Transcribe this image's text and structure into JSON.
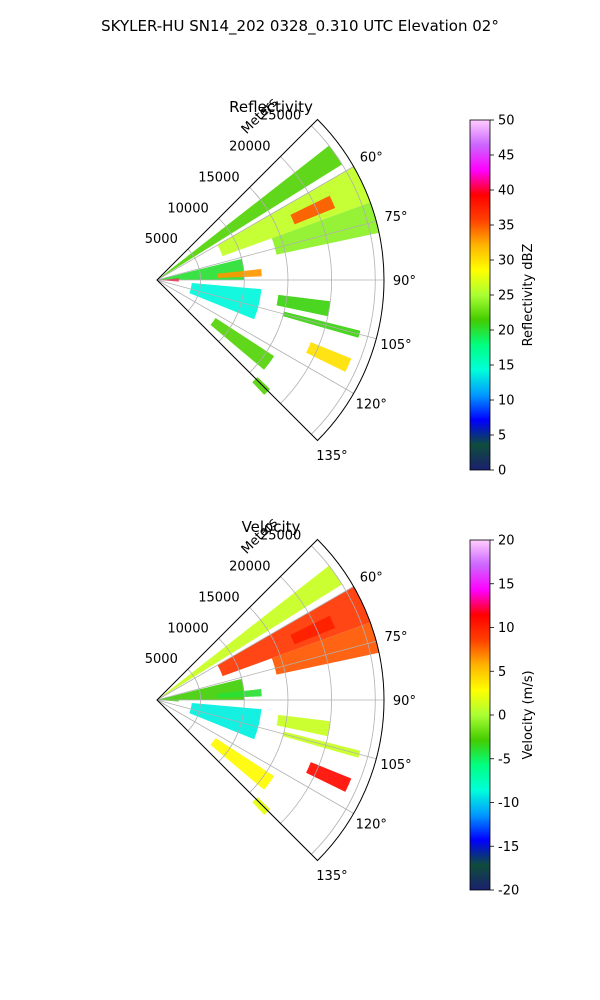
{
  "figure": {
    "suptitle": "SKYLER-HU  SN14_202  0328_0.310 UTC Elevation 02°"
  },
  "chart_data": [
    {
      "type": "polar-sector",
      "title": "Reflectivity",
      "r_label": "Meters",
      "r_ticks": [
        5000,
        10000,
        15000,
        20000,
        25000
      ],
      "r_max": 26000,
      "theta_ticks_deg": [
        60,
        75,
        90,
        105,
        120,
        135
      ],
      "theta_range_deg": [
        45,
        135
      ],
      "grid": true,
      "colorbar": {
        "label": "Reflectivity dBZ",
        "min": 0,
        "max": 50,
        "ticks": [
          0,
          5,
          10,
          15,
          20,
          25,
          30,
          35,
          40,
          45,
          50
        ],
        "stops": [
          "#1a1f6e",
          "#0f4d3c",
          "#0000ff",
          "#0099ff",
          "#00ffd9",
          "#00ff80",
          "#44cc00",
          "#aaff33",
          "#ffff00",
          "#ffb300",
          "#ff4000",
          "#ff0000",
          "#ff00ff",
          "#cc66ff",
          "#ffccff"
        ]
      },
      "echoes": [
        {
          "az": [
            52,
            58
          ],
          "r": [
            0,
            25000
          ],
          "value": 22
        },
        {
          "az": [
            60,
            70
          ],
          "r": [
            8000,
            26000
          ],
          "value": 26
        },
        {
          "az": [
            64,
            68
          ],
          "r": [
            17000,
            22000
          ],
          "value": 35
        },
        {
          "az": [
            70,
            78
          ],
          "r": [
            14000,
            26000
          ],
          "value": 24
        },
        {
          "az": [
            76,
            90
          ],
          "r": [
            0,
            10000
          ],
          "value": 20
        },
        {
          "az": [
            84,
            88
          ],
          "r": [
            7000,
            12000
          ],
          "value": 33
        },
        {
          "az": [
            86,
            94
          ],
          "r": [
            0,
            2500
          ],
          "value": 40
        },
        {
          "az": [
            95,
            112
          ],
          "r": [
            4000,
            12000
          ],
          "value": 14
        },
        {
          "az": [
            97,
            102
          ],
          "r": [
            14000,
            20000
          ],
          "value": 21
        },
        {
          "az": [
            104,
            106
          ],
          "r": [
            15000,
            24000
          ],
          "value": 21
        },
        {
          "az": [
            112,
            116
          ],
          "r": [
            19000,
            24000
          ],
          "value": 30
        },
        {
          "az": [
            123,
            130
          ],
          "r": [
            8000,
            16000
          ],
          "value": 22
        },
        {
          "az": [
            134,
            137
          ],
          "r": [
            16000,
            18000
          ],
          "value": 22
        }
      ]
    },
    {
      "type": "polar-sector",
      "title": "Velocity",
      "r_label": "Meters",
      "r_ticks": [
        5000,
        10000,
        15000,
        20000,
        25000
      ],
      "r_max": 26000,
      "theta_ticks_deg": [
        60,
        75,
        90,
        105,
        120,
        135
      ],
      "theta_range_deg": [
        45,
        135
      ],
      "grid": true,
      "colorbar": {
        "label": "Velocity (m/s)",
        "min": -20,
        "max": 20,
        "ticks": [
          -20,
          -15,
          -10,
          -5,
          0,
          5,
          10,
          15,
          20
        ],
        "stops": [
          "#1a1f6e",
          "#0f4d3c",
          "#0000ff",
          "#0099ff",
          "#00ffd9",
          "#00ff80",
          "#44cc00",
          "#aaff33",
          "#ffff00",
          "#ffb300",
          "#ff4000",
          "#ff0000",
          "#ff00ff",
          "#cc66ff",
          "#ffccff"
        ]
      },
      "echoes": [
        {
          "az": [
            52,
            58
          ],
          "r": [
            0,
            25000
          ],
          "value": 1
        },
        {
          "az": [
            60,
            70
          ],
          "r": [
            8000,
            26000
          ],
          "value": 9
        },
        {
          "az": [
            64,
            68
          ],
          "r": [
            17000,
            22000
          ],
          "value": 10
        },
        {
          "az": [
            70,
            78
          ],
          "r": [
            14000,
            26000
          ],
          "value": 8
        },
        {
          "az": [
            76,
            90
          ],
          "r": [
            0,
            10000
          ],
          "value": -3
        },
        {
          "az": [
            84,
            88
          ],
          "r": [
            7000,
            12000
          ],
          "value": -4
        },
        {
          "az": [
            86,
            94
          ],
          "r": [
            0,
            2500
          ],
          "value": -3
        },
        {
          "az": [
            95,
            112
          ],
          "r": [
            4000,
            12000
          ],
          "value": -9
        },
        {
          "az": [
            97,
            102
          ],
          "r": [
            14000,
            20000
          ],
          "value": 1
        },
        {
          "az": [
            104,
            106
          ],
          "r": [
            15000,
            24000
          ],
          "value": 1
        },
        {
          "az": [
            112,
            116
          ],
          "r": [
            19000,
            24000
          ],
          "value": 11
        },
        {
          "az": [
            123,
            130
          ],
          "r": [
            8000,
            16000
          ],
          "value": 3
        },
        {
          "az": [
            134,
            137
          ],
          "r": [
            16000,
            18000
          ],
          "value": 2
        }
      ]
    }
  ]
}
